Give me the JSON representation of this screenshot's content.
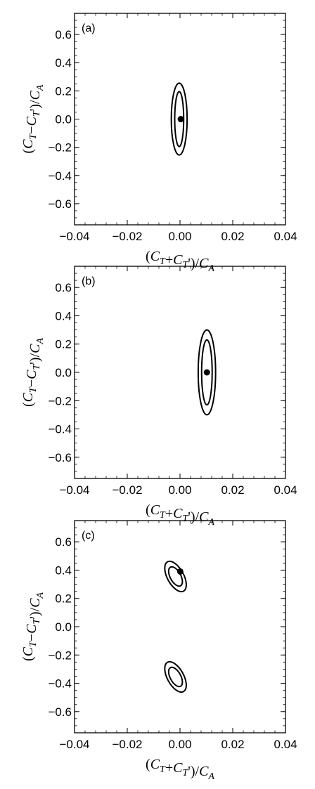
{
  "chart_data": [
    {
      "type": "contour",
      "panel_label": "(a)",
      "xlabel": "(C_T+C_T')/C_A",
      "ylabel": "(C_T−C_T')/C_A",
      "xlim": [
        -0.04,
        0.04
      ],
      "ylim": [
        -0.75,
        0.75
      ],
      "xticks": [
        -0.04,
        -0.02,
        0.0,
        0.02,
        0.04
      ],
      "xtick_labels": [
        "−0.04",
        "−0.02",
        "0.00",
        "0.02",
        "0.04"
      ],
      "yticks": [
        -0.6,
        -0.4,
        -0.2,
        0.0,
        0.2,
        0.4,
        0.6
      ],
      "ytick_labels": [
        "−0.6",
        "−0.4",
        "−0.2",
        "0.0",
        "0.2",
        "0.4",
        "0.6"
      ],
      "best_fit_point": {
        "x": 0.0003,
        "y": 0.0
      },
      "contours": [
        {
          "level": "inner",
          "center": [
            -0.0003,
            0.0
          ],
          "semi_x": 0.0017,
          "semi_y": 0.195,
          "tilt": 0.0
        },
        {
          "level": "outer",
          "center": [
            -0.0003,
            0.0
          ],
          "semi_x": 0.003,
          "semi_y": 0.255,
          "tilt": 0.0
        }
      ]
    },
    {
      "type": "contour",
      "panel_label": "(b)",
      "xlabel": "(C_T+C_T')/C_A",
      "ylabel": "(C_T−C_T')/C_A",
      "xlim": [
        -0.04,
        0.04
      ],
      "ylim": [
        -0.75,
        0.75
      ],
      "xticks": [
        -0.04,
        -0.02,
        0.0,
        0.02,
        0.04
      ],
      "xtick_labels": [
        "−0.04",
        "−0.02",
        "0.00",
        "0.02",
        "0.04"
      ],
      "yticks": [
        -0.6,
        -0.4,
        -0.2,
        0.0,
        0.2,
        0.4,
        0.6
      ],
      "ytick_labels": [
        "−0.6",
        "−0.4",
        "−0.2",
        "0.0",
        "0.2",
        "0.4",
        "0.6"
      ],
      "best_fit_point": {
        "x": 0.0102,
        "y": 0.0
      },
      "contours": [
        {
          "level": "inner",
          "center": [
            0.0102,
            0.0
          ],
          "semi_x": 0.002,
          "semi_y": 0.23,
          "tilt": 0.0
        },
        {
          "level": "outer",
          "center": [
            0.0102,
            0.0
          ],
          "semi_x": 0.0033,
          "semi_y": 0.3,
          "tilt": 0.0
        }
      ]
    },
    {
      "type": "contour",
      "panel_label": "(c)",
      "xlabel": "(C_T+C_T')/C_A",
      "ylabel": "(C_T−C_T')/C_A",
      "xlim": [
        -0.04,
        0.04
      ],
      "ylim": [
        -0.75,
        0.75
      ],
      "xticks": [
        -0.04,
        -0.02,
        0.0,
        0.02,
        0.04
      ],
      "xtick_labels": [
        "−0.04",
        "−0.02",
        "0.00",
        "0.02",
        "0.04"
      ],
      "yticks": [
        -0.6,
        -0.4,
        -0.2,
        0.0,
        0.2,
        0.4,
        0.6
      ],
      "ytick_labels": [
        "−0.6",
        "−0.4",
        "−0.2",
        "0.0",
        "0.2",
        "0.4",
        "0.6"
      ],
      "best_fit_point": {
        "x": 0.0001,
        "y": 0.39
      },
      "contours": [
        {
          "level": "inner",
          "center": [
            -0.0017,
            0.355
          ],
          "semi_x": 0.002,
          "semi_y": 0.075,
          "tilt": -0.5
        },
        {
          "level": "outer",
          "center": [
            -0.0017,
            0.355
          ],
          "semi_x": 0.0031,
          "semi_y": 0.118,
          "tilt": -0.5
        },
        {
          "level": "inner",
          "center": [
            -0.0017,
            -0.355
          ],
          "semi_x": 0.002,
          "semi_y": 0.075,
          "tilt": -0.5
        },
        {
          "level": "outer",
          "center": [
            -0.0017,
            -0.355
          ],
          "semi_x": 0.0031,
          "semi_y": 0.118,
          "tilt": -0.5
        }
      ]
    }
  ]
}
